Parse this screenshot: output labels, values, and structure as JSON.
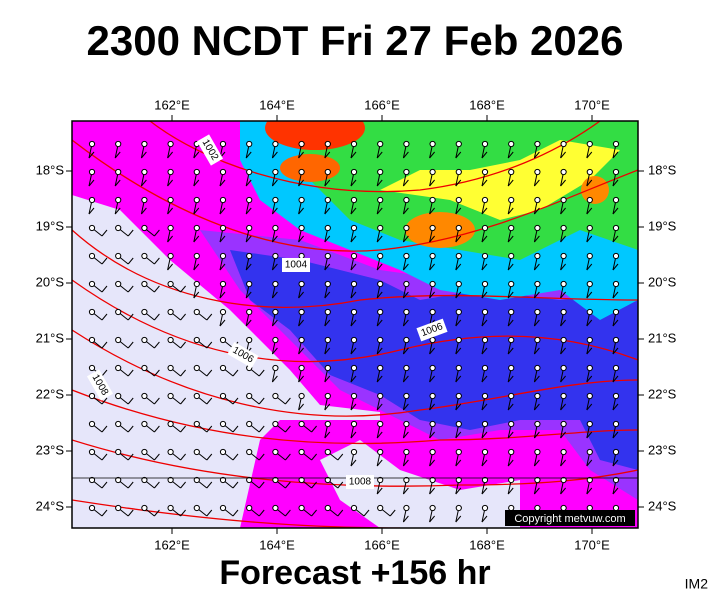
{
  "title": "2300 NCDT Fri 27 Feb 2026",
  "footer": "Forecast +156 hr",
  "corner_label": "IM2",
  "copyright": "Copyright metvuw.com",
  "map": {
    "x_ticks": [
      "162°E",
      "164°E",
      "166°E",
      "168°E",
      "170°E"
    ],
    "y_ticks": [
      "18°S",
      "19°S",
      "20°S",
      "21°S",
      "22°S",
      "23°S",
      "24°S"
    ],
    "isobar_labels": [
      "1002",
      "1004",
      "1006",
      "1006",
      "1008",
      "1008"
    ]
  }
}
